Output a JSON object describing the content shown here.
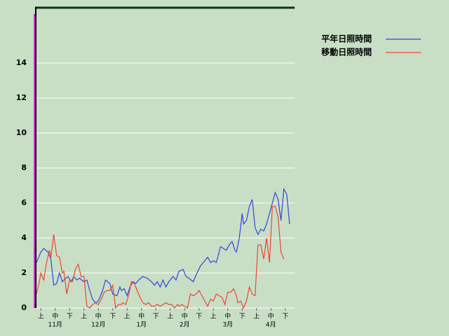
{
  "chart_data": {
    "type": "line",
    "xlim": [
      0,
      180.5
    ],
    "ylim": [
      0,
      17.2
    ],
    "yticks": [
      0,
      2,
      4,
      6,
      8,
      10,
      12,
      14
    ],
    "xticks": [
      {
        "value": 4,
        "label": "上"
      },
      {
        "value": 14,
        "label": "中"
      },
      {
        "value": 24,
        "label": "下"
      },
      {
        "value": 34,
        "label": "上"
      },
      {
        "value": 44,
        "label": "中"
      },
      {
        "value": 54,
        "label": "下"
      },
      {
        "value": 64,
        "label": "上"
      },
      {
        "value": 74,
        "label": "中"
      },
      {
        "value": 84,
        "label": "下"
      },
      {
        "value": 94,
        "label": "上"
      },
      {
        "value": 104,
        "label": "中"
      },
      {
        "value": 114,
        "label": "下"
      },
      {
        "value": 124,
        "label": "上"
      },
      {
        "value": 134,
        "label": "中"
      },
      {
        "value": 144,
        "label": "下"
      },
      {
        "value": 154,
        "label": "上"
      },
      {
        "value": 164,
        "label": "中"
      },
      {
        "value": 174,
        "label": "下"
      }
    ],
    "month_ticks": [
      {
        "value": 14,
        "label": "11月"
      },
      {
        "value": 44,
        "label": "12月"
      },
      {
        "value": 74,
        "label": "1月"
      },
      {
        "value": 104,
        "label": "2月"
      },
      {
        "value": 134,
        "label": "3月"
      },
      {
        "value": 164,
        "label": "4月"
      }
    ],
    "grid": true,
    "series": [
      {
        "name": "平年日照時間",
        "color": "#3344dd",
        "x": [
          1,
          4,
          6,
          9,
          11,
          13,
          15,
          17,
          19,
          20,
          23,
          25,
          27,
          29,
          31,
          34,
          36,
          38,
          40,
          42,
          44,
          47,
          49,
          52,
          54,
          57,
          59,
          60,
          62,
          64,
          66,
          68,
          70,
          72,
          75,
          78,
          81,
          83,
          85,
          87,
          89,
          91,
          93,
          96,
          98,
          100,
          103,
          105,
          107,
          110,
          112,
          115,
          117,
          120,
          122,
          124,
          126,
          129,
          131,
          133,
          135,
          137,
          139,
          140,
          142,
          144,
          145,
          147,
          149,
          151,
          153,
          155,
          157,
          159,
          161,
          163,
          165,
          167,
          169,
          171,
          173,
          175,
          177
        ],
        "values": [
          2.6,
          3.2,
          3.4,
          3.2,
          2.8,
          1.3,
          1.4,
          2.0,
          1.5,
          1.6,
          1.8,
          1.5,
          1.8,
          1.6,
          1.7,
          1.5,
          1.6,
          1.0,
          0.5,
          0.3,
          0.4,
          1.0,
          1.6,
          1.4,
          0.8,
          0.7,
          1.2,
          1.0,
          1.1,
          0.7,
          1.2,
          1.5,
          1.4,
          1.6,
          1.8,
          1.7,
          1.5,
          1.3,
          1.5,
          1.2,
          1.6,
          1.2,
          1.5,
          1.8,
          1.6,
          2.1,
          2.2,
          1.8,
          1.7,
          1.5,
          1.9,
          2.4,
          2.6,
          2.9,
          2.6,
          2.7,
          2.6,
          3.5,
          3.4,
          3.3,
          3.6,
          3.8,
          3.3,
          3.2,
          4.0,
          5.4,
          4.8,
          5.0,
          5.8,
          6.2,
          4.6,
          4.2,
          4.5,
          4.4,
          4.8,
          5.4,
          6.0,
          6.6,
          6.2,
          5.0,
          6.8,
          6.5,
          4.8
        ]
      },
      {
        "name": "移動日照時間",
        "color": "#ee4433",
        "x": [
          1,
          3,
          4,
          6,
          8,
          10,
          11,
          13,
          15,
          17,
          19,
          20,
          22,
          24,
          26,
          28,
          30,
          32,
          34,
          36,
          38,
          40,
          42,
          44,
          46,
          48,
          50,
          52,
          54,
          56,
          58,
          60,
          61,
          63,
          65,
          67,
          69,
          71,
          73,
          75,
          77,
          79,
          81,
          83,
          85,
          87,
          89,
          91,
          93,
          95,
          97,
          99,
          100,
          102,
          104,
          106,
          108,
          110,
          112,
          114,
          116,
          118,
          120,
          122,
          124,
          126,
          128,
          130,
          132,
          134,
          136,
          138,
          140,
          141,
          143,
          145,
          147,
          149,
          151,
          153,
          155,
          157,
          159,
          161,
          163,
          165,
          167,
          169,
          171,
          173
        ],
        "values": [
          0.8,
          1.5,
          2.0,
          1.6,
          2.6,
          3.3,
          2.9,
          4.2,
          3.0,
          2.9,
          2.0,
          2.1,
          0.8,
          1.6,
          1.5,
          2.2,
          2.5,
          1.8,
          1.8,
          0.1,
          0.0,
          0.2,
          0.3,
          0.2,
          0.5,
          0.9,
          1.0,
          1.0,
          1.3,
          0.0,
          0.2,
          0.2,
          0.3,
          0.2,
          0.7,
          1.5,
          1.4,
          1.0,
          0.6,
          0.3,
          0.2,
          0.3,
          0.1,
          0.1,
          0.2,
          0.1,
          0.2,
          0.3,
          0.2,
          0.2,
          0.0,
          0.2,
          0.1,
          0.2,
          0.1,
          0.0,
          0.8,
          0.7,
          0.8,
          1.0,
          0.7,
          0.4,
          0.1,
          0.5,
          0.4,
          0.8,
          0.7,
          0.6,
          0.2,
          0.9,
          0.9,
          1.1,
          0.7,
          0.3,
          0.4,
          0.0,
          0.4,
          1.2,
          0.8,
          0.7,
          3.6,
          3.6,
          2.8,
          4.0,
          2.6,
          5.8,
          5.8,
          5.2,
          3.2,
          2.8
        ]
      }
    ]
  }
}
